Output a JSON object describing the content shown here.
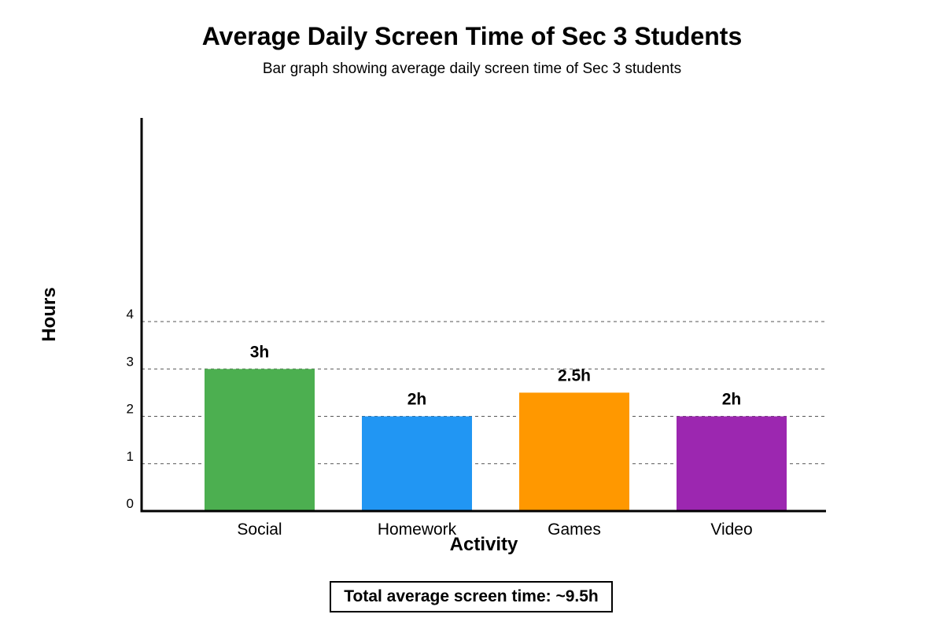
{
  "chart_data": {
    "type": "bar",
    "title": "Average Daily Screen Time of Sec 3 Students",
    "subtitle": "Bar graph showing average daily screen time of Sec 3 students",
    "xlabel": "Activity",
    "ylabel": "Hours",
    "categories": [
      "Social",
      "Homework",
      "Games",
      "Video"
    ],
    "values": [
      3,
      2,
      2.5,
      2
    ],
    "data_labels": [
      "3h",
      "2h",
      "2.5h",
      "2h"
    ],
    "colors": [
      "#4caf50",
      "#2196f3",
      "#ff9800",
      "#9c27b0"
    ],
    "yticks": [
      0,
      1,
      2,
      3,
      4
    ],
    "ylim": [
      0,
      8.3
    ],
    "grid": true,
    "grid_style": "dashed"
  },
  "footer": {
    "total_label": "Total average screen time: ~9.5h"
  }
}
